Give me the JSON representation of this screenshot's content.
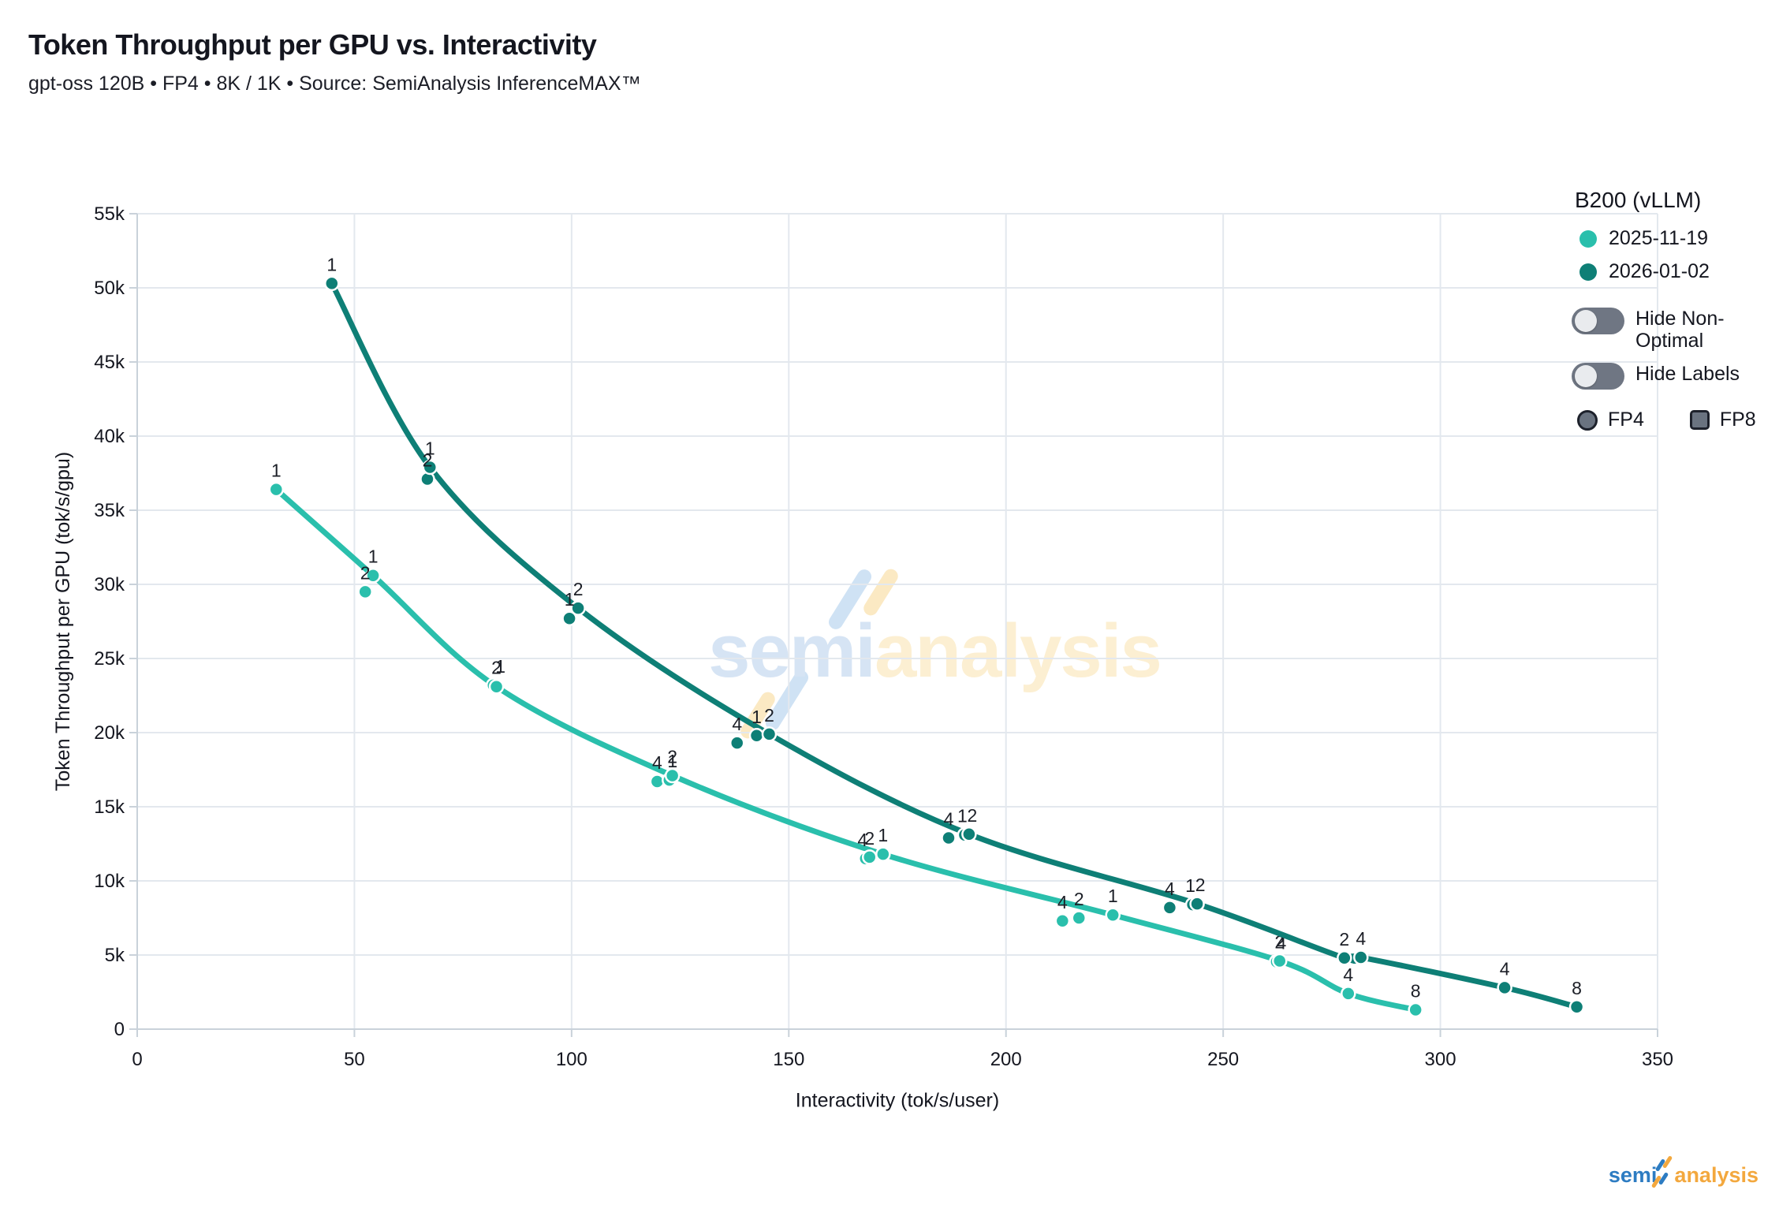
{
  "header": {
    "title": "Token Throughput per GPU vs. Interactivity",
    "subtitle": "gpt-oss 120B • FP4 • 8K / 1K • Source: SemiAnalysis InferenceMAX™"
  },
  "chart_data": {
    "type": "scatter",
    "title": "Token Throughput per GPU vs. Interactivity",
    "xlabel": "Interactivity (tok/s/user)",
    "ylabel": "Token Throughput per GPU (tok/s/gpu)",
    "xlim": [
      0,
      350
    ],
    "ylim": [
      0,
      55000
    ],
    "grid": true,
    "legend_position": "top-right",
    "x_ticks": [
      {
        "v": 0,
        "label": "0"
      },
      {
        "v": 50,
        "label": "50"
      },
      {
        "v": 100,
        "label": "100"
      },
      {
        "v": 150,
        "label": "150"
      },
      {
        "v": 200,
        "label": "200"
      },
      {
        "v": 250,
        "label": "250"
      },
      {
        "v": 300,
        "label": "300"
      },
      {
        "v": 350,
        "label": "350"
      }
    ],
    "y_ticks": [
      {
        "v": 0,
        "label": "0"
      },
      {
        "v": 5000,
        "label": "5k"
      },
      {
        "v": 10000,
        "label": "10k"
      },
      {
        "v": 15000,
        "label": "15k"
      },
      {
        "v": 20000,
        "label": "20k"
      },
      {
        "v": 25000,
        "label": "25k"
      },
      {
        "v": 30000,
        "label": "30k"
      },
      {
        "v": 35000,
        "label": "35k"
      },
      {
        "v": 40000,
        "label": "40k"
      },
      {
        "v": 45000,
        "label": "45k"
      },
      {
        "v": 50000,
        "label": "50k"
      },
      {
        "v": 55000,
        "label": "55k"
      }
    ],
    "series": [
      {
        "name": "2025-11-19",
        "color": "#2abfac",
        "points": [
          {
            "x": 32,
            "y": 36400,
            "label": "1",
            "optimal": true
          },
          {
            "x": 52.5,
            "y": 29500,
            "label": "2",
            "optimal": false
          },
          {
            "x": 54.3,
            "y": 30600,
            "label": "1",
            "optimal": true
          },
          {
            "x": 82,
            "y": 23200,
            "label": "1",
            "optimal": false,
            "dx": 9
          },
          {
            "x": 82.7,
            "y": 23100,
            "label": "2",
            "optimal": true
          },
          {
            "x": 119.7,
            "y": 16700,
            "label": "4",
            "optimal": false
          },
          {
            "x": 122.5,
            "y": 16800,
            "label": "1",
            "optimal": false,
            "dx": 4
          },
          {
            "x": 123.2,
            "y": 17100,
            "label": "2",
            "optimal": true
          },
          {
            "x": 167.7,
            "y": 11500,
            "label": "4",
            "optimal": false,
            "dx": -4
          },
          {
            "x": 168.6,
            "y": 11600,
            "label": "2",
            "optimal": false
          },
          {
            "x": 171.7,
            "y": 11800,
            "label": "1",
            "optimal": true
          },
          {
            "x": 213,
            "y": 7300,
            "label": "4",
            "optimal": false
          },
          {
            "x": 216.8,
            "y": 7500,
            "label": "2",
            "optimal": false
          },
          {
            "x": 224.6,
            "y": 7700,
            "label": "1",
            "optimal": true
          },
          {
            "x": 262.3,
            "y": 4550,
            "label": "4",
            "optimal": false,
            "dx": 6
          },
          {
            "x": 263,
            "y": 4600,
            "label": "2",
            "optimal": true
          },
          {
            "x": 278.8,
            "y": 2400,
            "label": "4",
            "optimal": true
          },
          {
            "x": 294.3,
            "y": 1300,
            "label": "8",
            "optimal": true
          }
        ]
      },
      {
        "name": "2026-01-02",
        "color": "#0e7f76",
        "points": [
          {
            "x": 44.8,
            "y": 50300,
            "label": "1",
            "optimal": true
          },
          {
            "x": 66.8,
            "y": 37100,
            "label": "2",
            "optimal": false
          },
          {
            "x": 67.4,
            "y": 37900,
            "label": "1",
            "optimal": true
          },
          {
            "x": 99.5,
            "y": 27700,
            "label": "1",
            "optimal": false
          },
          {
            "x": 101.5,
            "y": 28400,
            "label": "2",
            "optimal": true
          },
          {
            "x": 138.1,
            "y": 19300,
            "label": "4",
            "optimal": false
          },
          {
            "x": 142.6,
            "y": 19800,
            "label": "1",
            "optimal": false
          },
          {
            "x": 145.5,
            "y": 19900,
            "label": "2",
            "optimal": true
          },
          {
            "x": 186.8,
            "y": 12900,
            "label": "4",
            "optimal": false
          },
          {
            "x": 190.5,
            "y": 13100,
            "label": "1",
            "optimal": false,
            "dx": -3
          },
          {
            "x": 191.5,
            "y": 13150,
            "label": "2",
            "optimal": true,
            "dx": 4
          },
          {
            "x": 237.7,
            "y": 8200,
            "label": "4",
            "optimal": false
          },
          {
            "x": 243,
            "y": 8400,
            "label": "1",
            "optimal": false,
            "dx": -3
          },
          {
            "x": 244,
            "y": 8450,
            "label": "2",
            "optimal": true,
            "dx": 4
          },
          {
            "x": 277.9,
            "y": 4800,
            "label": "2",
            "optimal": true
          },
          {
            "x": 281.7,
            "y": 4840,
            "label": "4",
            "optimal": true
          },
          {
            "x": 314.8,
            "y": 2800,
            "label": "4",
            "optimal": true
          },
          {
            "x": 331.4,
            "y": 1500,
            "label": "8",
            "optimal": true
          }
        ]
      }
    ]
  },
  "legend": {
    "title": "B200 (vLLM)",
    "items": [
      {
        "label": "2025-11-19",
        "color": "#2abfac"
      },
      {
        "label": "2026-01-02",
        "color": "#0e7f76"
      }
    ],
    "toggles": [
      {
        "label": "Hide Non-Optimal",
        "on": false
      },
      {
        "label": "Hide Labels",
        "on": false
      }
    ],
    "shapes": [
      {
        "label": "FP4",
        "shape": "circle"
      },
      {
        "label": "FP8",
        "shape": "square"
      }
    ]
  },
  "watermark": {
    "left_text": "semi",
    "right_text": "analysis",
    "left_color": "#d6e4f4",
    "right_color": "#fcefd2",
    "slash_blue": "#cfe2f4",
    "slash_yellow": "#fbe9c3"
  },
  "logo": {
    "semi": "semi",
    "analysis": "analysis",
    "semi_color": "#2d7cc2",
    "analysis_color": "#f3a83e",
    "slash_blue": "#2d7cc2",
    "slash_orange": "#f3a83e"
  },
  "colors": {
    "grid": "#e3e8ee",
    "axis": "#c9d2da",
    "tick_text": "#14161f",
    "point_label": "#1c1f27"
  }
}
